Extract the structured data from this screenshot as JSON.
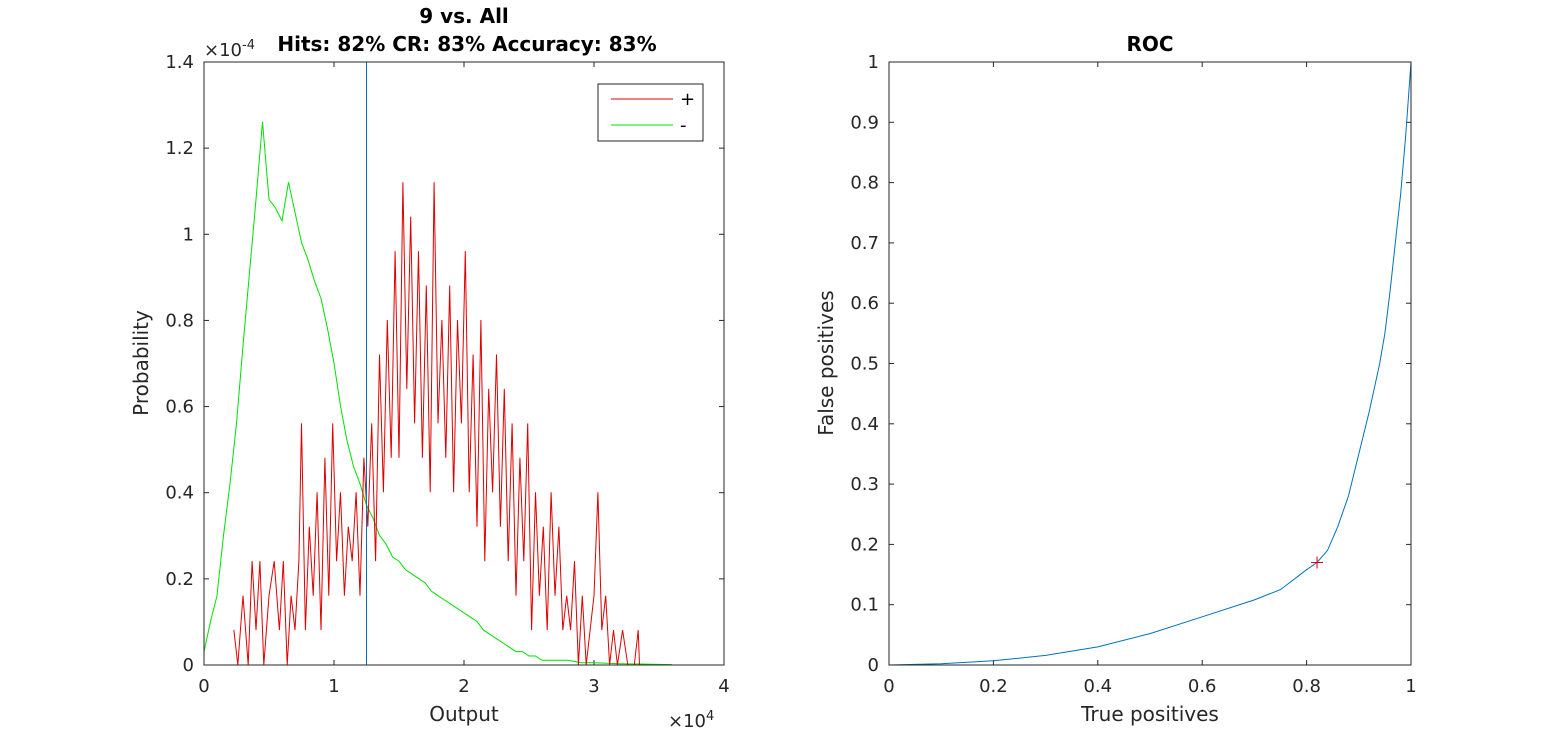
{
  "colors": {
    "positive": "#e00000",
    "negative": "#00e000",
    "roc": "#0072bd",
    "threshold": "#0072bd",
    "marker": "#e00000"
  },
  "chart_data": [
    {
      "type": "line",
      "title_line1": "9 vs. All",
      "title_line2": "Hits: 82% CR: 83% Accuracy: 83%",
      "xlabel": "Output",
      "ylabel": "Probability",
      "x_exponent": "×10",
      "x_exponent_power": "4",
      "y_exponent": "×10",
      "y_exponent_power": "-4",
      "xlim": [
        0,
        40000
      ],
      "ylim": [
        0,
        0.00014
      ],
      "xticks": [
        0,
        10000,
        20000,
        30000,
        40000
      ],
      "xticklabels": [
        "0",
        "1",
        "2",
        "3",
        "4"
      ],
      "yticks": [
        0,
        2e-05,
        4e-05,
        6e-05,
        8e-05,
        0.0001,
        0.00012,
        0.00014
      ],
      "yticklabels": [
        "0",
        "0.2",
        "0.4",
        "0.6",
        "0.8",
        "1",
        "1.2",
        "1.4"
      ],
      "threshold_x": 12500,
      "legend_placement": "top-right",
      "series": [
        {
          "name": "+",
          "color": "#e00000",
          "points": [
            [
              2300,
              8.1e-06
            ],
            [
              2600,
              0
            ],
            [
              3000,
              1.61e-05
            ],
            [
              3400,
              0
            ],
            [
              3700,
              2.41e-05
            ],
            [
              4000,
              8.1e-06
            ],
            [
              4300,
              2.41e-05
            ],
            [
              4600,
              0
            ],
            [
              5000,
              1.61e-05
            ],
            [
              5400,
              2.41e-05
            ],
            [
              5800,
              8.1e-06
            ],
            [
              6100,
              2.41e-05
            ],
            [
              6400,
              0
            ],
            [
              6700,
              1.61e-05
            ],
            [
              7000,
              8.1e-06
            ],
            [
              7300,
              2.41e-05
            ],
            [
              7500,
              5.61e-05
            ],
            [
              7800,
              8.1e-06
            ],
            [
              8100,
              3.21e-05
            ],
            [
              8400,
              1.61e-05
            ],
            [
              8700,
              4.01e-05
            ],
            [
              9000,
              8.1e-06
            ],
            [
              9300,
              4.81e-05
            ],
            [
              9600,
              1.61e-05
            ],
            [
              9900,
              5.61e-05
            ],
            [
              10200,
              2.41e-05
            ],
            [
              10500,
              4.01e-05
            ],
            [
              10800,
              1.61e-05
            ],
            [
              11100,
              3.21e-05
            ],
            [
              11400,
              2.41e-05
            ],
            [
              11700,
              4.01e-05
            ],
            [
              12000,
              1.61e-05
            ],
            [
              12300,
              4.81e-05
            ],
            [
              12600,
              3.21e-05
            ],
            [
              12900,
              5.61e-05
            ],
            [
              13200,
              2.41e-05
            ],
            [
              13500,
              7.21e-05
            ],
            [
              13800,
              4.01e-05
            ],
            [
              14100,
              8.01e-05
            ],
            [
              14400,
              4.81e-05
            ],
            [
              14700,
              9.61e-05
            ],
            [
              15000,
              4.81e-05
            ],
            [
              15300,
              0.0001121
            ],
            [
              15600,
              6.41e-05
            ],
            [
              15900,
              0.0001041
            ],
            [
              16200,
              5.61e-05
            ],
            [
              16500,
              9.61e-05
            ],
            [
              16800,
              4.81e-05
            ],
            [
              17100,
              8.81e-05
            ],
            [
              17400,
              4.01e-05
            ],
            [
              17700,
              0.0001121
            ],
            [
              18000,
              5.61e-05
            ],
            [
              18300,
              8.01e-05
            ],
            [
              18600,
              4.81e-05
            ],
            [
              18900,
              8.81e-05
            ],
            [
              19200,
              4.01e-05
            ],
            [
              19500,
              8.01e-05
            ],
            [
              19800,
              5.61e-05
            ],
            [
              20100,
              9.61e-05
            ],
            [
              20400,
              4.01e-05
            ],
            [
              20700,
              7.21e-05
            ],
            [
              21000,
              3.21e-05
            ],
            [
              21300,
              8.01e-05
            ],
            [
              21600,
              2.41e-05
            ],
            [
              21900,
              6.41e-05
            ],
            [
              22200,
              4.01e-05
            ],
            [
              22500,
              7.21e-05
            ],
            [
              22800,
              3.21e-05
            ],
            [
              23100,
              6.41e-05
            ],
            [
              23400,
              2.41e-05
            ],
            [
              23700,
              5.61e-05
            ],
            [
              24000,
              1.61e-05
            ],
            [
              24300,
              4.81e-05
            ],
            [
              24600,
              2.41e-05
            ],
            [
              24900,
              5.61e-05
            ],
            [
              25200,
              8.1e-06
            ],
            [
              25500,
              4.01e-05
            ],
            [
              25800,
              1.61e-05
            ],
            [
              26100,
              3.21e-05
            ],
            [
              26400,
              8.1e-06
            ],
            [
              26700,
              4.01e-05
            ],
            [
              27000,
              1.61e-05
            ],
            [
              27300,
              3.21e-05
            ],
            [
              27600,
              8.1e-06
            ],
            [
              27900,
              1.61e-05
            ],
            [
              28200,
              8.1e-06
            ],
            [
              28500,
              2.41e-05
            ],
            [
              28800,
              0
            ],
            [
              29100,
              1.61e-05
            ],
            [
              29400,
              0
            ],
            [
              29700,
              8.1e-06
            ],
            [
              30000,
              1.61e-05
            ],
            [
              30300,
              4.01e-05
            ],
            [
              30600,
              8.1e-06
            ],
            [
              30900,
              1.61e-05
            ],
            [
              31200,
              0
            ],
            [
              31500,
              8.1e-06
            ],
            [
              31800,
              0
            ],
            [
              32200,
              8.1e-06
            ],
            [
              32600,
              0
            ],
            [
              33100,
              0
            ],
            [
              33400,
              8.1e-06
            ],
            [
              33500,
              0
            ]
          ]
        },
        {
          "name": "-",
          "color": "#00e000",
          "points": [
            [
              0,
              3.1e-06
            ],
            [
              500,
              1.01e-05
            ],
            [
              1000,
              1.61e-05
            ],
            [
              1500,
              3.01e-05
            ],
            [
              2000,
              4.21e-05
            ],
            [
              2500,
              5.61e-05
            ],
            [
              3000,
              7.41e-05
            ],
            [
              3500,
              9.11e-05
            ],
            [
              4000,
              0.0001081
            ],
            [
              4500,
              0.0001261
            ],
            [
              5000,
              0.0001081
            ],
            [
              5500,
              0.0001061
            ],
            [
              6000,
              0.0001031
            ],
            [
              6500,
              0.0001121
            ],
            [
              7000,
              0.0001051
            ],
            [
              7500,
              9.81e-05
            ],
            [
              8000,
              9.41e-05
            ],
            [
              8500,
              8.91e-05
            ],
            [
              9000,
              8.51e-05
            ],
            [
              9500,
              7.81e-05
            ],
            [
              10000,
              7.01e-05
            ],
            [
              10500,
              6.01e-05
            ],
            [
              11000,
              5.21e-05
            ],
            [
              11500,
              4.61e-05
            ],
            [
              12000,
              4.21e-05
            ],
            [
              12500,
              3.71e-05
            ],
            [
              13000,
              3.41e-05
            ],
            [
              13500,
              3.01e-05
            ],
            [
              14000,
              2.81e-05
            ],
            [
              14500,
              2.51e-05
            ],
            [
              15000,
              2.41e-05
            ],
            [
              15500,
              2.21e-05
            ],
            [
              16000,
              2.11e-05
            ],
            [
              16500,
              2.01e-05
            ],
            [
              17000,
              1.91e-05
            ],
            [
              17500,
              1.71e-05
            ],
            [
              18000,
              1.61e-05
            ],
            [
              18500,
              1.51e-05
            ],
            [
              19000,
              1.41e-05
            ],
            [
              19500,
              1.31e-05
            ],
            [
              20000,
              1.21e-05
            ],
            [
              20500,
              1.11e-05
            ],
            [
              21000,
              1.01e-05
            ],
            [
              21500,
              8.1e-06
            ],
            [
              22000,
              7.1e-06
            ],
            [
              22500,
              6.1e-06
            ],
            [
              23000,
              5.1e-06
            ],
            [
              23500,
              4.1e-06
            ],
            [
              24000,
              3.1e-06
            ],
            [
              24500,
              3.1e-06
            ],
            [
              25000,
              2.1e-06
            ],
            [
              25500,
              2.1e-06
            ],
            [
              26000,
              1.1e-06
            ],
            [
              27000,
              1.1e-06
            ],
            [
              28000,
              1.1e-06
            ],
            [
              29000,
              5e-07
            ],
            [
              30000,
              5e-07
            ],
            [
              32000,
              3e-07
            ],
            [
              34000,
              2e-07
            ],
            [
              36000,
              1e-07
            ]
          ]
        }
      ]
    },
    {
      "type": "line",
      "title": "ROC",
      "xlabel": "True positives",
      "ylabel": "False positives",
      "xlim": [
        0,
        1
      ],
      "ylim": [
        0,
        1
      ],
      "xticks": [
        0,
        0.2,
        0.4,
        0.6,
        0.8,
        1
      ],
      "xticklabels": [
        "0",
        "0.2",
        "0.4",
        "0.6",
        "0.8",
        "1"
      ],
      "yticks": [
        0,
        0.1,
        0.2,
        0.3,
        0.4,
        0.5,
        0.6,
        0.7,
        0.8,
        0.9,
        1
      ],
      "yticklabels": [
        "0",
        "0.1",
        "0.2",
        "0.3",
        "0.4",
        "0.5",
        "0.6",
        "0.7",
        "0.8",
        "0.9",
        "1"
      ],
      "operating_point": [
        0.82,
        0.17
      ],
      "series": [
        {
          "color": "#0072bd",
          "points": [
            [
              0,
              0
            ],
            [
              0.1,
              0.002
            ],
            [
              0.2,
              0.007
            ],
            [
              0.3,
              0.016
            ],
            [
              0.4,
              0.03
            ],
            [
              0.5,
              0.052
            ],
            [
              0.6,
              0.08
            ],
            [
              0.7,
              0.108
            ],
            [
              0.75,
              0.125
            ],
            [
              0.8,
              0.158
            ],
            [
              0.82,
              0.17
            ],
            [
              0.84,
              0.19
            ],
            [
              0.86,
              0.23
            ],
            [
              0.88,
              0.28
            ],
            [
              0.9,
              0.35
            ],
            [
              0.92,
              0.42
            ],
            [
              0.94,
              0.5
            ],
            [
              0.95,
              0.55
            ],
            [
              0.96,
              0.62
            ],
            [
              0.97,
              0.7
            ],
            [
              0.98,
              0.78
            ],
            [
              0.99,
              0.88
            ],
            [
              1,
              1
            ]
          ]
        }
      ]
    }
  ]
}
